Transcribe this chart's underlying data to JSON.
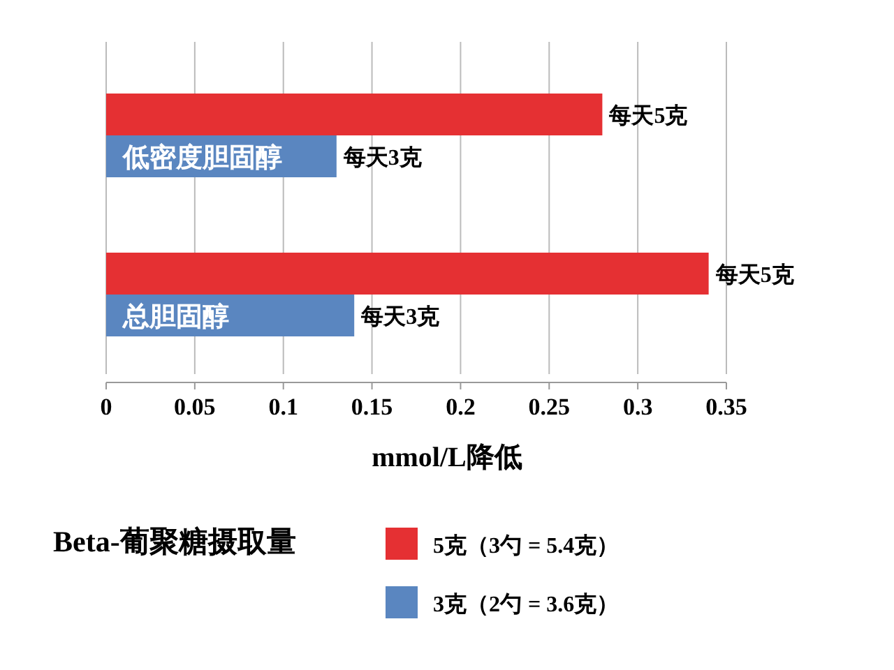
{
  "chart_data": {
    "type": "bar",
    "orientation": "horizontal",
    "categories": [
      "低密度胆固醇",
      "总胆固醇"
    ],
    "series": [
      {
        "name": "5克（3勺 = 5.4克）",
        "color": "#e53033",
        "values": [
          0.28,
          0.34
        ],
        "value_labels": [
          "每天5克",
          "每天5克"
        ]
      },
      {
        "name": "3克（2勺 = 3.6克）",
        "color": "#5a86c0",
        "values": [
          0.13,
          0.14
        ],
        "value_labels": [
          "每天3克",
          "每天3克"
        ]
      }
    ],
    "xlim": [
      0,
      0.35
    ],
    "xticks": [
      0,
      0.05,
      0.1,
      0.15,
      0.2,
      0.25,
      0.3,
      0.35
    ],
    "xlabel": "mmol/L降低",
    "legend_title": "Beta-葡聚糖摄取量",
    "legend": "bottom",
    "grid": "x"
  }
}
